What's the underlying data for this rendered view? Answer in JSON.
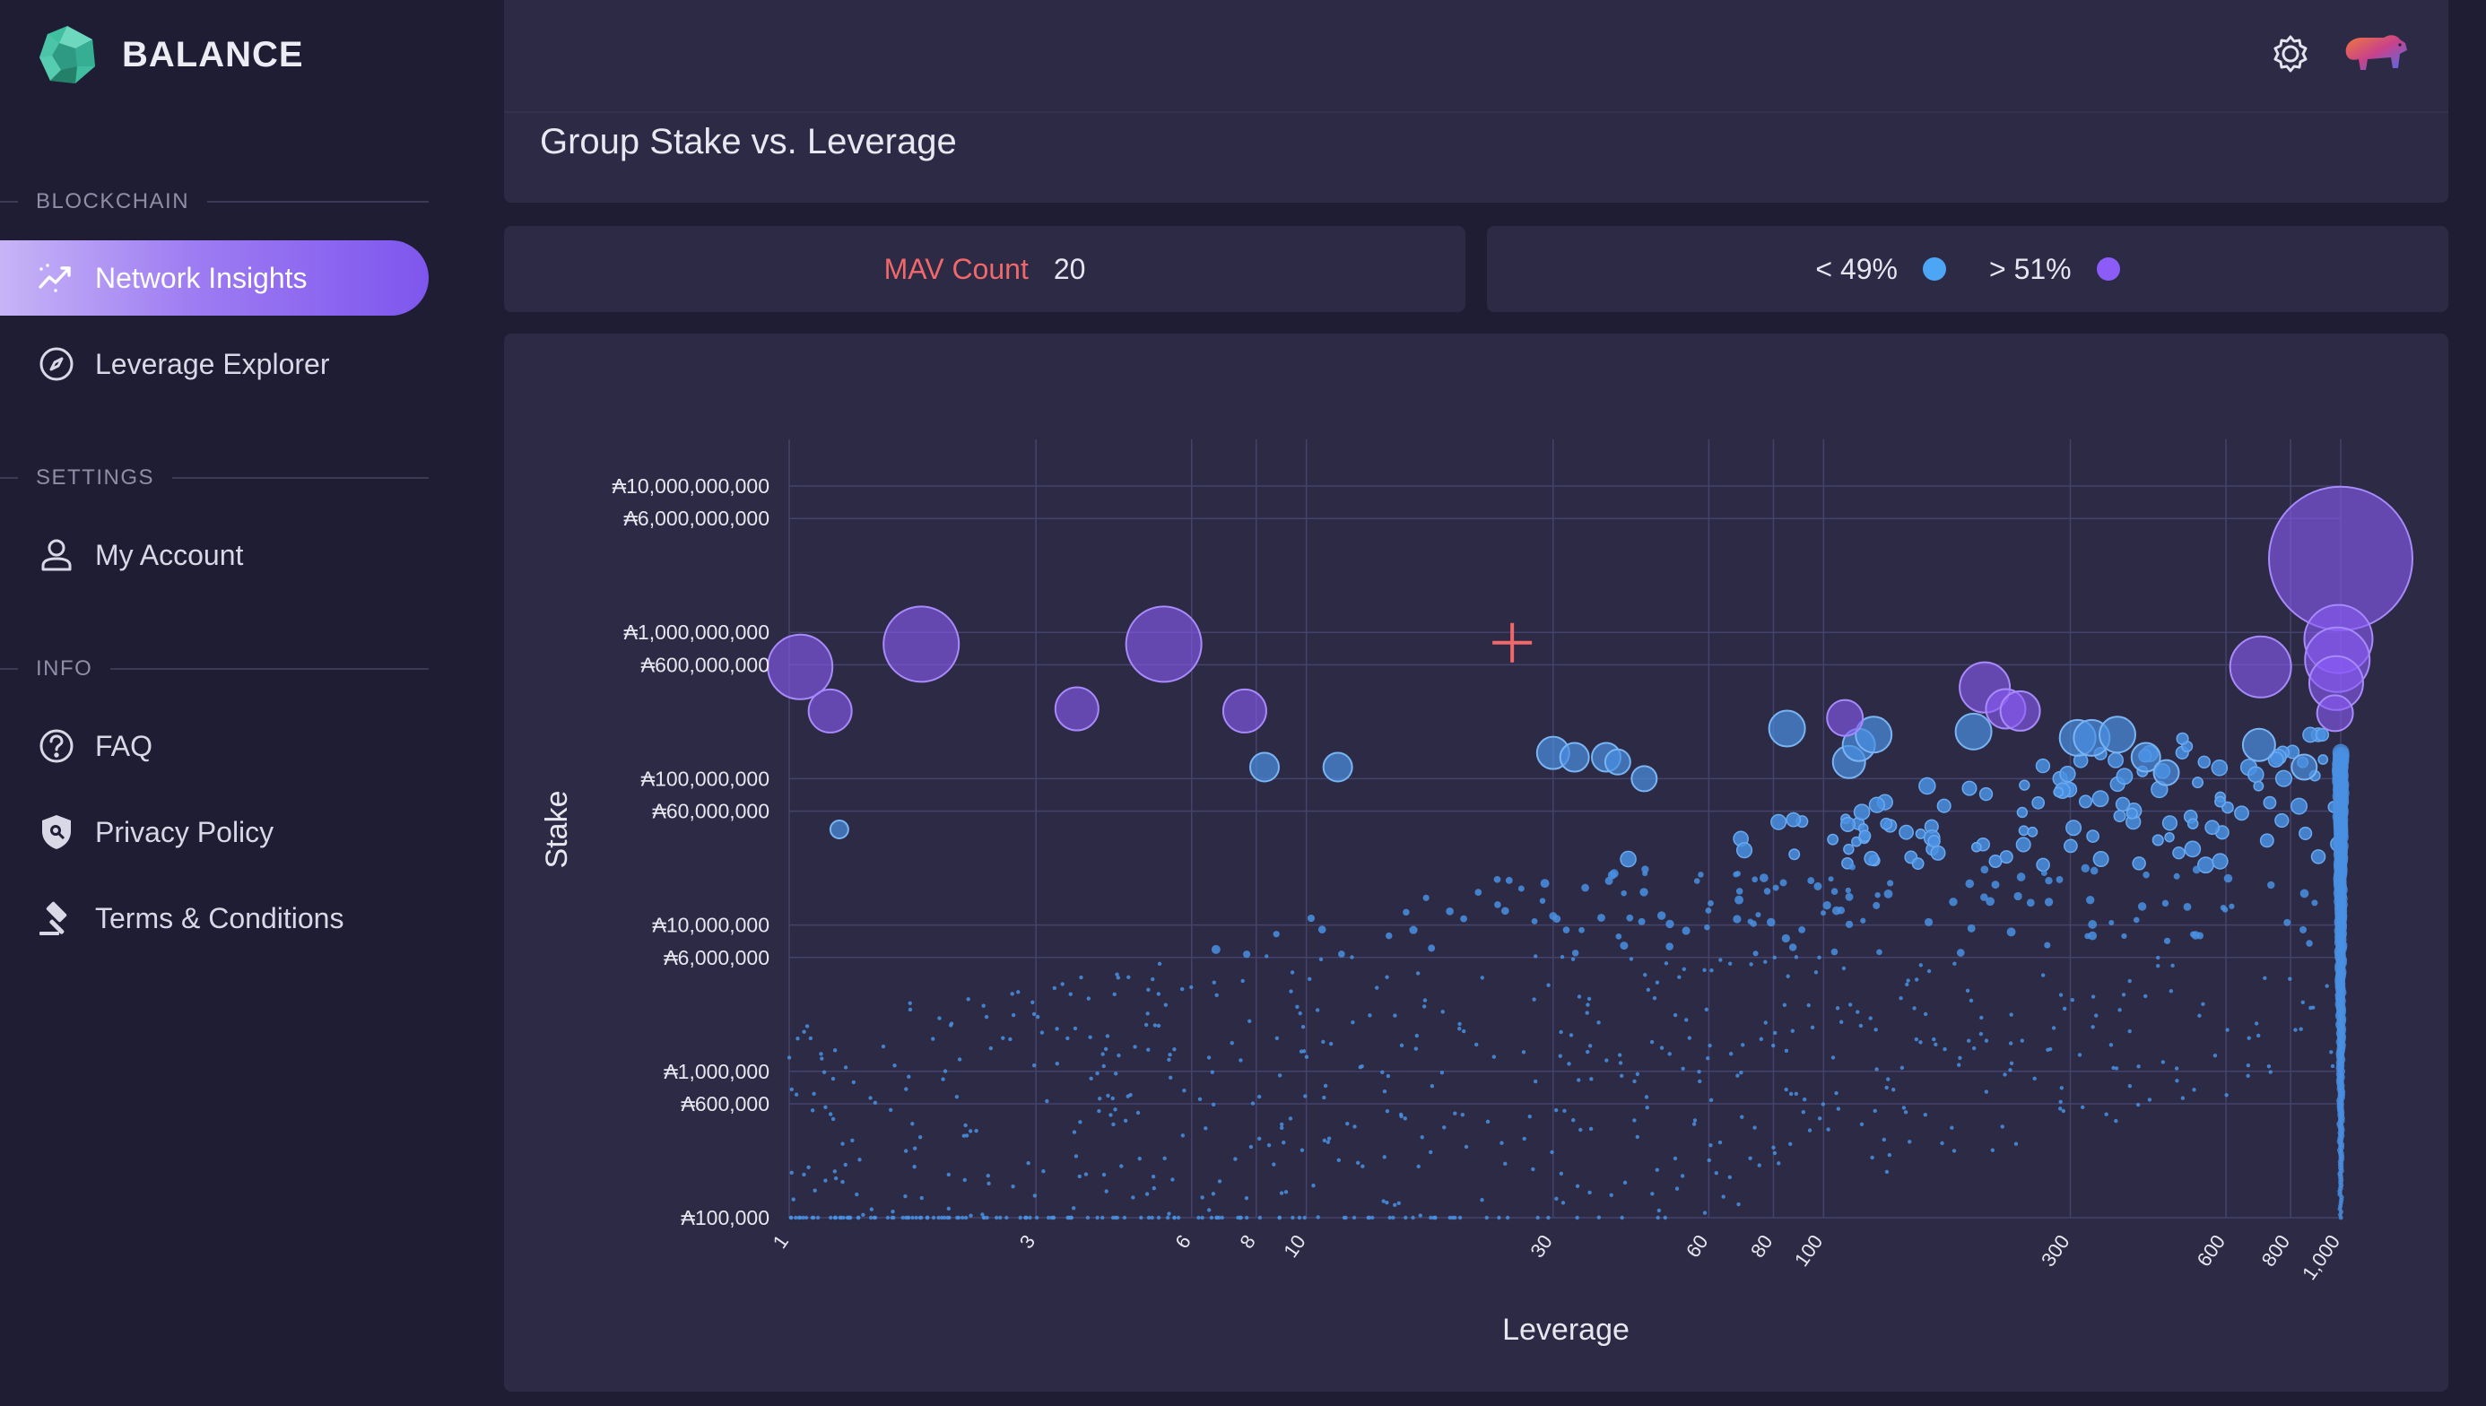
{
  "brand": {
    "name": "BALANCE"
  },
  "sidebar": {
    "sections": [
      {
        "label": "BLOCKCHAIN"
      },
      {
        "label": "SETTINGS"
      },
      {
        "label": "INFO"
      }
    ],
    "items": [
      {
        "label": "Network Insights",
        "icon": "chart-trend-icon"
      },
      {
        "label": "Leverage Explorer",
        "icon": "compass-icon"
      },
      {
        "label": "My Account",
        "icon": "user-icon"
      },
      {
        "label": "FAQ",
        "icon": "question-icon"
      },
      {
        "label": "Privacy Policy",
        "icon": "shield-icon"
      },
      {
        "label": "Terms & Conditions",
        "icon": "gavel-icon"
      }
    ]
  },
  "page": {
    "title": "Group Stake vs. Leverage"
  },
  "stats": {
    "mav_label": "MAV Count",
    "mav_value": "20"
  },
  "legend": {
    "low_label": "< 49%",
    "low_color": "#4da6f5",
    "high_label": "> 51%",
    "high_color": "#8b5cf6"
  },
  "colors": {
    "accent": "#8b5cf6",
    "blue": "#4a90e2",
    "purple": "#8b5cf6",
    "marker": "#f0686a"
  },
  "chart_data": {
    "type": "scatter",
    "xlabel": "Leverage",
    "ylabel": "Stake",
    "xscale": "log",
    "yscale": "log",
    "xlim": [
      1,
      1000
    ],
    "ylim": [
      100000,
      10000000000
    ],
    "x_ticks": [
      1,
      3,
      6,
      8,
      10,
      30,
      60,
      80,
      100,
      300,
      600,
      800,
      1000
    ],
    "x_tick_labels": [
      "1",
      "3",
      "6",
      "8",
      "10",
      "30",
      "60",
      "80",
      "100",
      "300",
      "600",
      "800",
      "1,000"
    ],
    "y_ticks": [
      100000,
      600000,
      1000000,
      6000000,
      10000000,
      60000000,
      100000000,
      600000000,
      1000000000,
      6000000000,
      10000000000
    ],
    "y_tick_labels": [
      "₳100,000",
      "₳600,000",
      "₳1,000,000",
      "₳6,000,000",
      "₳10,000,000",
      "₳60,000,000",
      "₳100,000,000",
      "₳600,000,000",
      "₳1,000,000,000",
      "₳6,000,000,000",
      "₳10,000,000,000"
    ],
    "cursor_marker": {
      "x": 25,
      "y": 850000000
    },
    "series": [
      {
        "name": "> 51%",
        "color": "#8b5cf6",
        "points": [
          {
            "x": 1.05,
            "y": 580000000,
            "size": 36
          },
          {
            "x": 1.2,
            "y": 290000000,
            "size": 24
          },
          {
            "x": 1.8,
            "y": 830000000,
            "size": 42
          },
          {
            "x": 3.6,
            "y": 300000000,
            "size": 24
          },
          {
            "x": 5.3,
            "y": 830000000,
            "size": 42
          },
          {
            "x": 7.6,
            "y": 290000000,
            "size": 24
          },
          {
            "x": 110,
            "y": 260000000,
            "size": 20
          },
          {
            "x": 205,
            "y": 420000000,
            "size": 28
          },
          {
            "x": 225,
            "y": 300000000,
            "size": 22
          },
          {
            "x": 240,
            "y": 290000000,
            "size": 22
          },
          {
            "x": 700,
            "y": 580000000,
            "size": 34
          },
          {
            "x": 1000,
            "y": 3200000000,
            "size": 80
          },
          {
            "x": 990,
            "y": 900000000,
            "size": 38
          },
          {
            "x": 985,
            "y": 650000000,
            "size": 36
          },
          {
            "x": 980,
            "y": 450000000,
            "size": 30
          },
          {
            "x": 975,
            "y": 280000000,
            "size": 20
          }
        ]
      },
      {
        "name": "< 49%",
        "color": "#4a90e2",
        "points": [
          {
            "x": 1.25,
            "y": 45000000,
            "size": 10
          },
          {
            "x": 8.3,
            "y": 120000000,
            "size": 16
          },
          {
            "x": 11.5,
            "y": 120000000,
            "size": 16
          },
          {
            "x": 30,
            "y": 150000000,
            "size": 18
          },
          {
            "x": 33,
            "y": 140000000,
            "size": 16
          },
          {
            "x": 38,
            "y": 140000000,
            "size": 16
          },
          {
            "x": 40,
            "y": 130000000,
            "size": 14
          },
          {
            "x": 45,
            "y": 100000000,
            "size": 14
          },
          {
            "x": 85,
            "y": 220000000,
            "size": 20
          },
          {
            "x": 112,
            "y": 130000000,
            "size": 18
          },
          {
            "x": 117,
            "y": 170000000,
            "size": 18
          },
          {
            "x": 125,
            "y": 200000000,
            "size": 20
          },
          {
            "x": 195,
            "y": 210000000,
            "size": 20
          },
          {
            "x": 310,
            "y": 190000000,
            "size": 20
          },
          {
            "x": 330,
            "y": 190000000,
            "size": 20
          },
          {
            "x": 370,
            "y": 200000000,
            "size": 20
          },
          {
            "x": 420,
            "y": 140000000,
            "size": 16
          },
          {
            "x": 460,
            "y": 110000000,
            "size": 14
          },
          {
            "x": 695,
            "y": 170000000,
            "size": 18
          },
          {
            "x": 850,
            "y": 120000000,
            "size": 14
          }
        ]
      }
    ]
  }
}
